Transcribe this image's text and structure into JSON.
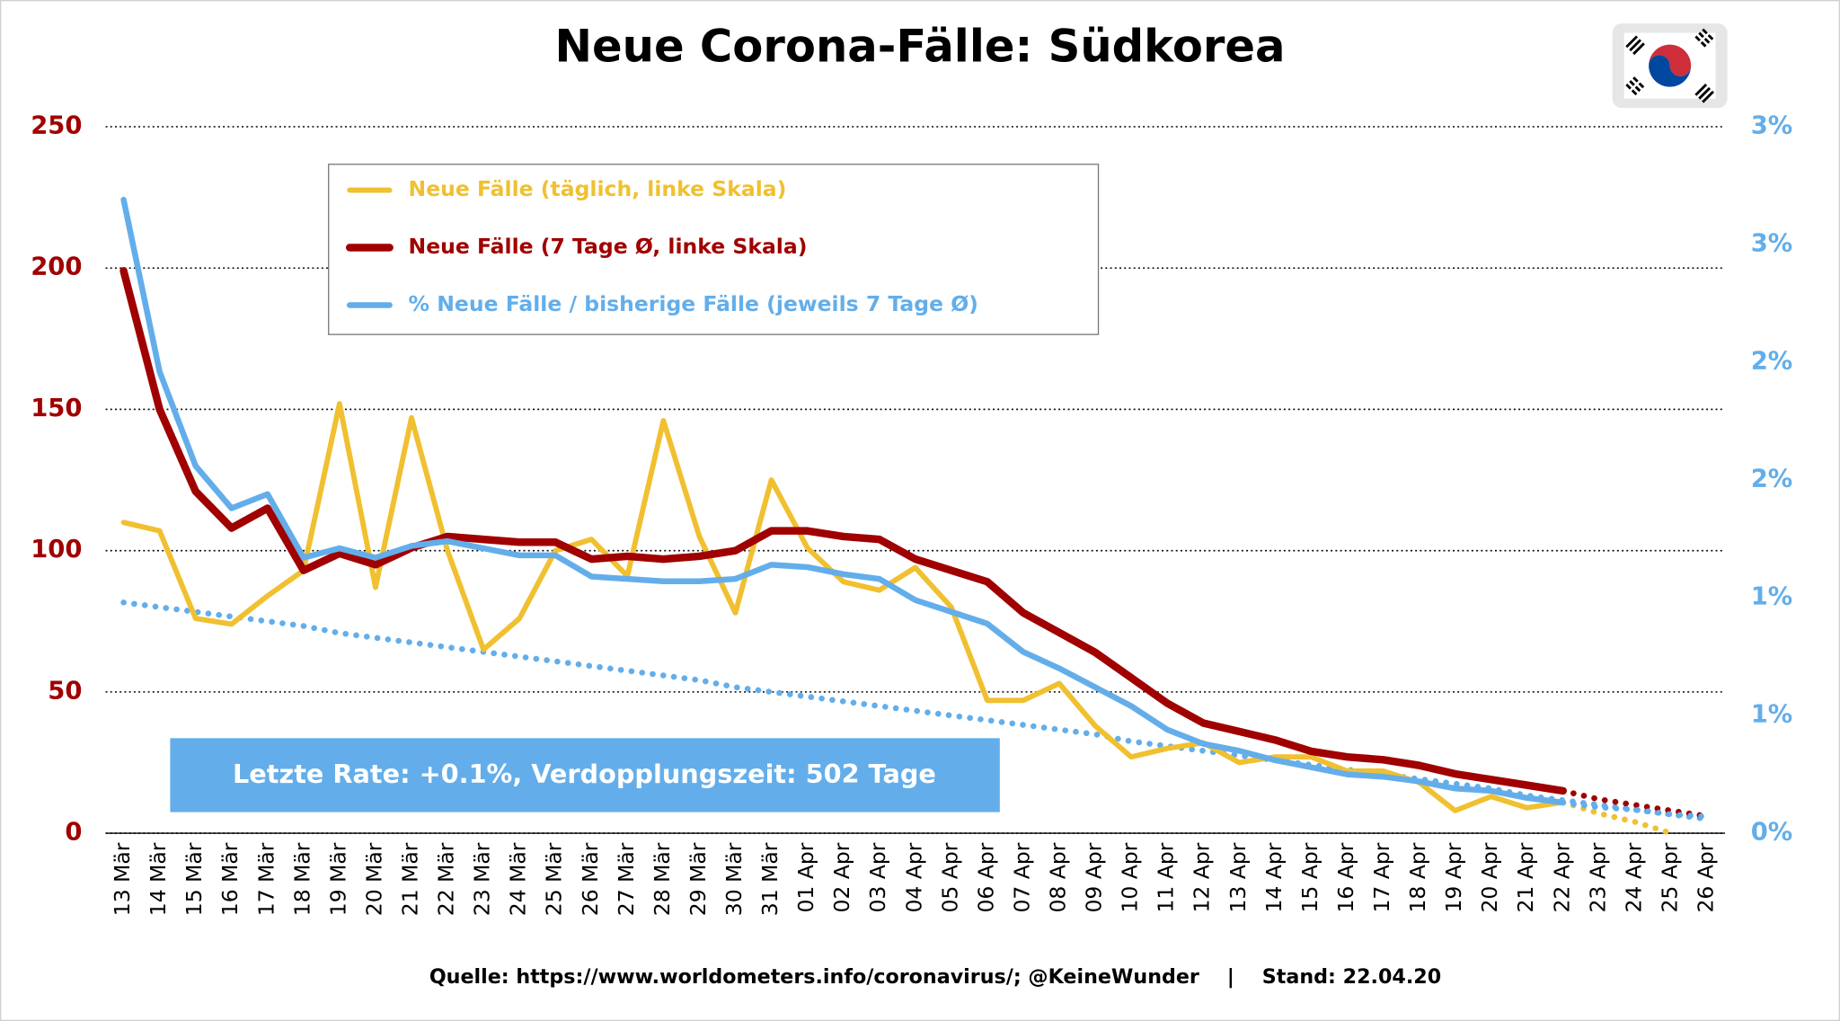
{
  "chart_data": {
    "type": "line",
    "title": "Neue Corona-Fälle: Südkorea",
    "annotation": "Letzte Rate: +0.1%, Verdopplungszeit: 502 Tage",
    "source": "Quelle: https://www.worldometers.info/coronavirus/; @KeineWunder    |    Stand: 22.04.20",
    "categories": [
      "13 Mär",
      "14 Mär",
      "15 Mär",
      "16 Mär",
      "17 Mär",
      "18 Mär",
      "19 Mär",
      "20 Mär",
      "21 Mär",
      "22 Mär",
      "23 Mär",
      "24 Mär",
      "25 Mär",
      "26 Mär",
      "27 Mär",
      "28 Mär",
      "29 Mär",
      "30 Mär",
      "31 Mär",
      "01 Apr",
      "02 Apr",
      "03 Apr",
      "04 Apr",
      "05 Apr",
      "06 Apr",
      "07 Apr",
      "08 Apr",
      "09 Apr",
      "10 Apr",
      "11 Apr",
      "12 Apr",
      "13 Apr",
      "14 Apr",
      "15 Apr",
      "16 Apr",
      "17 Apr",
      "18 Apr",
      "19 Apr",
      "20 Apr",
      "21 Apr",
      "22 Apr",
      "23 Apr",
      "24 Apr",
      "25 Apr",
      "26 Apr"
    ],
    "ylim": [
      0,
      250
    ],
    "yticks": [
      0,
      50,
      100,
      150,
      200,
      250
    ],
    "y2lim": [
      0,
      3
    ],
    "y2ticks": [
      {
        "value": 0,
        "label": "0%"
      },
      {
        "value": 0.5,
        "label": "1%"
      },
      {
        "value": 1,
        "label": "1%"
      },
      {
        "value": 1.5,
        "label": "2%"
      },
      {
        "value": 2,
        "label": "2%"
      },
      {
        "value": 2.5,
        "label": "3%"
      },
      {
        "value": 3,
        "label": "3%"
      }
    ],
    "grid": true,
    "legend": "top-left",
    "series": [
      {
        "name": "Neue Fälle (täglich, linke Skala)",
        "color": "#f0c030",
        "linestyle": "solid",
        "values": [
          110,
          107,
          76,
          74,
          84,
          93,
          152,
          87,
          147,
          100,
          65,
          76,
          100,
          104,
          91,
          146,
          105,
          78,
          125,
          101,
          89,
          86,
          94,
          80,
          47,
          47,
          53,
          38,
          27,
          30,
          32,
          25,
          27,
          27,
          22,
          22,
          18,
          8,
          13,
          9,
          11,
          null,
          null,
          null,
          null
        ]
      },
      {
        "name": "Neue Fälle (7 Tage Ø, linke Skala)",
        "color": "#a00000",
        "linestyle": "solid",
        "values": [
          199,
          150,
          121,
          108,
          115,
          93,
          99,
          95,
          101,
          105,
          104,
          103,
          103,
          97,
          98,
          97,
          98,
          100,
          107,
          107,
          105,
          104,
          97,
          93,
          89,
          78,
          71,
          64,
          55,
          46,
          39,
          36,
          33,
          29,
          27,
          26,
          24,
          21,
          19,
          17,
          15,
          null,
          null,
          null,
          null
        ]
      },
      {
        "name": "% Neue Fälle / bisherige Fälle (jeweils 7 Tage Ø)",
        "color": "#63aeea",
        "linestyle": "solid",
        "axis": "y2",
        "values": [
          2.69,
          1.96,
          1.56,
          1.38,
          1.44,
          1.17,
          1.21,
          1.17,
          1.22,
          1.24,
          1.21,
          1.18,
          1.18,
          1.09,
          1.08,
          1.07,
          1.07,
          1.08,
          1.14,
          1.13,
          1.1,
          1.08,
          0.99,
          0.94,
          0.89,
          0.77,
          0.7,
          0.62,
          0.54,
          0.44,
          0.38,
          0.35,
          0.31,
          0.28,
          0.25,
          0.24,
          0.22,
          0.19,
          0.18,
          0.15,
          0.13,
          null,
          null,
          null,
          null
        ]
      },
      {
        "color": "#63aeea",
        "linestyle": "dotted",
        "axis": "y2",
        "values": [
          0.98,
          0.96,
          0.94,
          0.92,
          0.9,
          0.88,
          0.85,
          0.83,
          0.81,
          0.79,
          0.77,
          0.75,
          0.73,
          0.71,
          0.69,
          0.67,
          0.65,
          0.62,
          0.6,
          0.58,
          0.56,
          0.54,
          0.52,
          0.5,
          0.48,
          0.46,
          0.44,
          0.42,
          0.39,
          0.37,
          0.35,
          0.33,
          0.31,
          0.29,
          0.27,
          0.25,
          0.23,
          0.21,
          0.19,
          0.16,
          0.14,
          0.12,
          0.1,
          0.08,
          0.06
        ]
      },
      {
        "color": "#f0c030",
        "linestyle": "dotted",
        "values": [
          null,
          null,
          null,
          null,
          null,
          null,
          null,
          null,
          null,
          null,
          null,
          null,
          null,
          null,
          null,
          null,
          null,
          null,
          null,
          null,
          null,
          null,
          null,
          null,
          null,
          null,
          null,
          null,
          null,
          null,
          null,
          null,
          null,
          null,
          null,
          null,
          null,
          null,
          null,
          null,
          11,
          7,
          4,
          0,
          null
        ]
      },
      {
        "color": "#a00000",
        "linestyle": "dotted",
        "values": [
          null,
          null,
          null,
          null,
          null,
          null,
          null,
          null,
          null,
          null,
          null,
          null,
          null,
          null,
          null,
          null,
          null,
          null,
          null,
          null,
          null,
          null,
          null,
          null,
          null,
          null,
          null,
          null,
          null,
          null,
          null,
          null,
          null,
          null,
          null,
          null,
          null,
          null,
          null,
          null,
          15,
          12,
          10,
          8,
          6
        ]
      },
      {
        "color": "#63aeea",
        "linestyle": "dotted",
        "axis": "y2",
        "values": [
          null,
          null,
          null,
          null,
          null,
          null,
          null,
          null,
          null,
          null,
          null,
          null,
          null,
          null,
          null,
          null,
          null,
          null,
          null,
          null,
          null,
          null,
          null,
          null,
          null,
          null,
          null,
          null,
          null,
          null,
          null,
          null,
          null,
          null,
          null,
          null,
          null,
          null,
          null,
          null,
          0.13,
          0.11,
          0.1,
          0.08,
          0.07
        ]
      }
    ]
  }
}
